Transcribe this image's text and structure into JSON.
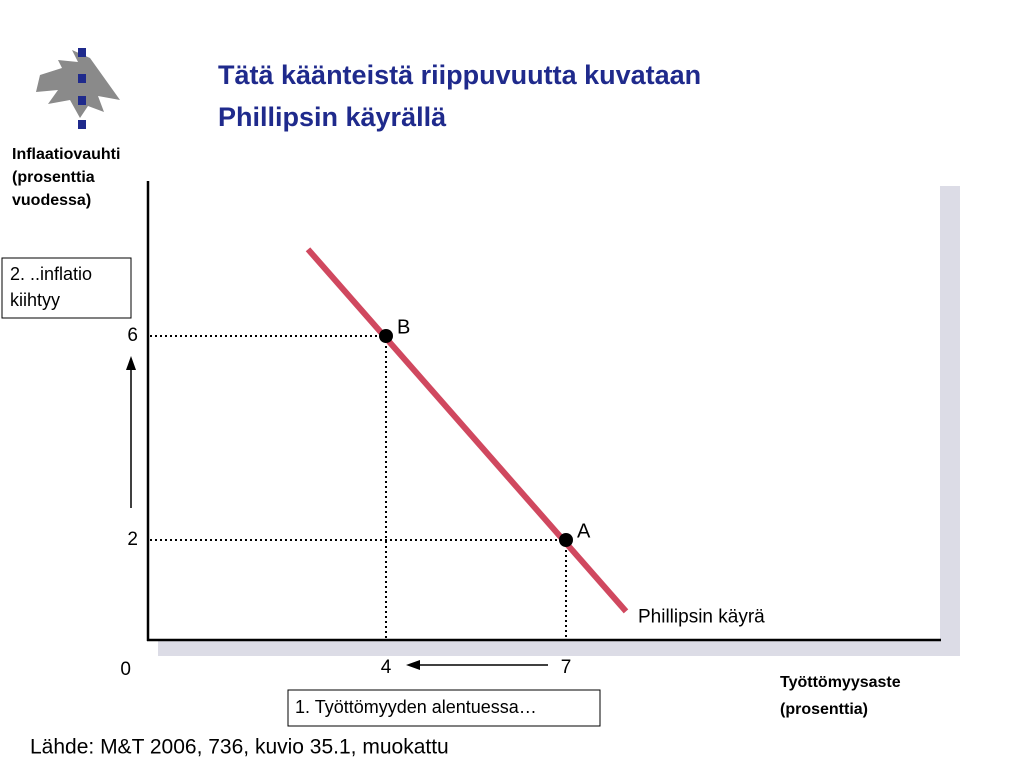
{
  "chart_data": {
    "type": "line",
    "title": [
      "Tätä käänteistä riippuvuutta kuvataan",
      "Phillipsin käyrällä"
    ],
    "ylabel": [
      "Inflaatiovauhti",
      "(prosenttia",
      "vuodessa)"
    ],
    "xlabel": [
      "Työttömyysaste",
      "(prosenttia)"
    ],
    "xlim": [
      0,
      13.2
    ],
    "ylim": [
      0,
      9
    ],
    "xticks": [
      4,
      7
    ],
    "yticks": [
      2,
      6
    ],
    "origin": 0,
    "series": [
      {
        "name": "Phillipsin käyrä",
        "color": "#d0485f",
        "x": [
          2.7,
          8
        ],
        "values": [
          7.7,
          0.6
        ]
      }
    ],
    "points": [
      {
        "label": "B",
        "x": 4,
        "y": 6
      },
      {
        "label": "A",
        "x": 7,
        "y": 2
      }
    ],
    "annotation_inflation": [
      "2. ..inflatio",
      "kiihtyy"
    ],
    "annotation_unemployment": "1. Työttömyyden alentuessa…",
    "source": "Lähde: M&T 2006, 736, kuvio 35.1, muokattu"
  }
}
